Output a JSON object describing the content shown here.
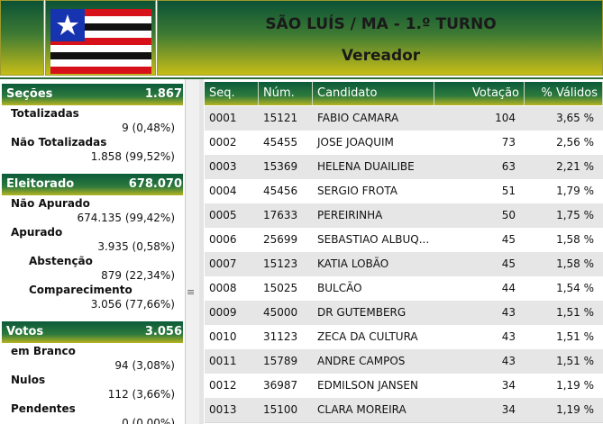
{
  "header": {
    "title": "SÃO LUÍS / MA - 1.º TURNO",
    "subtitle": "Vereador"
  },
  "summary": [
    {
      "title": "Seções",
      "total": "1.867",
      "items": [
        {
          "label": "Totalizadas",
          "value": "9 (0,48%)"
        },
        {
          "label": "Não Totalizadas",
          "value": "1.858 (99,52%)"
        }
      ]
    },
    {
      "title": "Eleitorado",
      "total": "678.070",
      "items": [
        {
          "label": "Não Apurado",
          "value": "674.135 (99,42%)"
        },
        {
          "label": "Apurado",
          "value": "3.935 (0,58%)",
          "items": [
            {
              "label": "Abstenção",
              "value": "879 (22,34%)"
            },
            {
              "label": "Comparecimento",
              "value": "3.056 (77,66%)"
            }
          ]
        }
      ]
    },
    {
      "title": "Votos",
      "total": "3.056",
      "items": [
        {
          "label": "em Branco",
          "value": "94 (3,08%)"
        },
        {
          "label": "Nulos",
          "value": "112 (3,66%)"
        },
        {
          "label": "Pendentes",
          "value": "0 (0,00%)"
        }
      ]
    }
  ],
  "table": {
    "columns": [
      "Seq.",
      "Núm.",
      "Candidato",
      "Votação",
      "% Válidos"
    ],
    "rows": [
      [
        "0001",
        "15121",
        "FABIO CAMARA",
        "104",
        "3,65 %"
      ],
      [
        "0002",
        "45455",
        "JOSE JOAQUIM",
        "73",
        "2,56 %"
      ],
      [
        "0003",
        "15369",
        "HELENA DUAILIBE",
        "63",
        "2,21 %"
      ],
      [
        "0004",
        "45456",
        "SERGIO FROTA",
        "51",
        "1,79 %"
      ],
      [
        "0005",
        "17633",
        "PEREIRINHA",
        "50",
        "1,75 %"
      ],
      [
        "0006",
        "25699",
        "SEBASTIAO ALBUQ...",
        "45",
        "1,58 %"
      ],
      [
        "0007",
        "15123",
        "KATIA LOBÃO",
        "45",
        "1,58 %"
      ],
      [
        "0008",
        "15025",
        "BULCÃO",
        "44",
        "1,54 %"
      ],
      [
        "0009",
        "45000",
        "DR GUTEMBERG",
        "43",
        "1,51 %"
      ],
      [
        "0010",
        "31123",
        "ZECA DA CULTURA",
        "43",
        "1,51 %"
      ],
      [
        "0011",
        "15789",
        "ANDRE CAMPOS",
        "43",
        "1,51 %"
      ],
      [
        "0012",
        "36987",
        "EDMILSON JANSEN",
        "34",
        "1,19 %"
      ],
      [
        "0013",
        "15100",
        "CLARA MOREIRA",
        "34",
        "1,19 %"
      ]
    ]
  }
}
